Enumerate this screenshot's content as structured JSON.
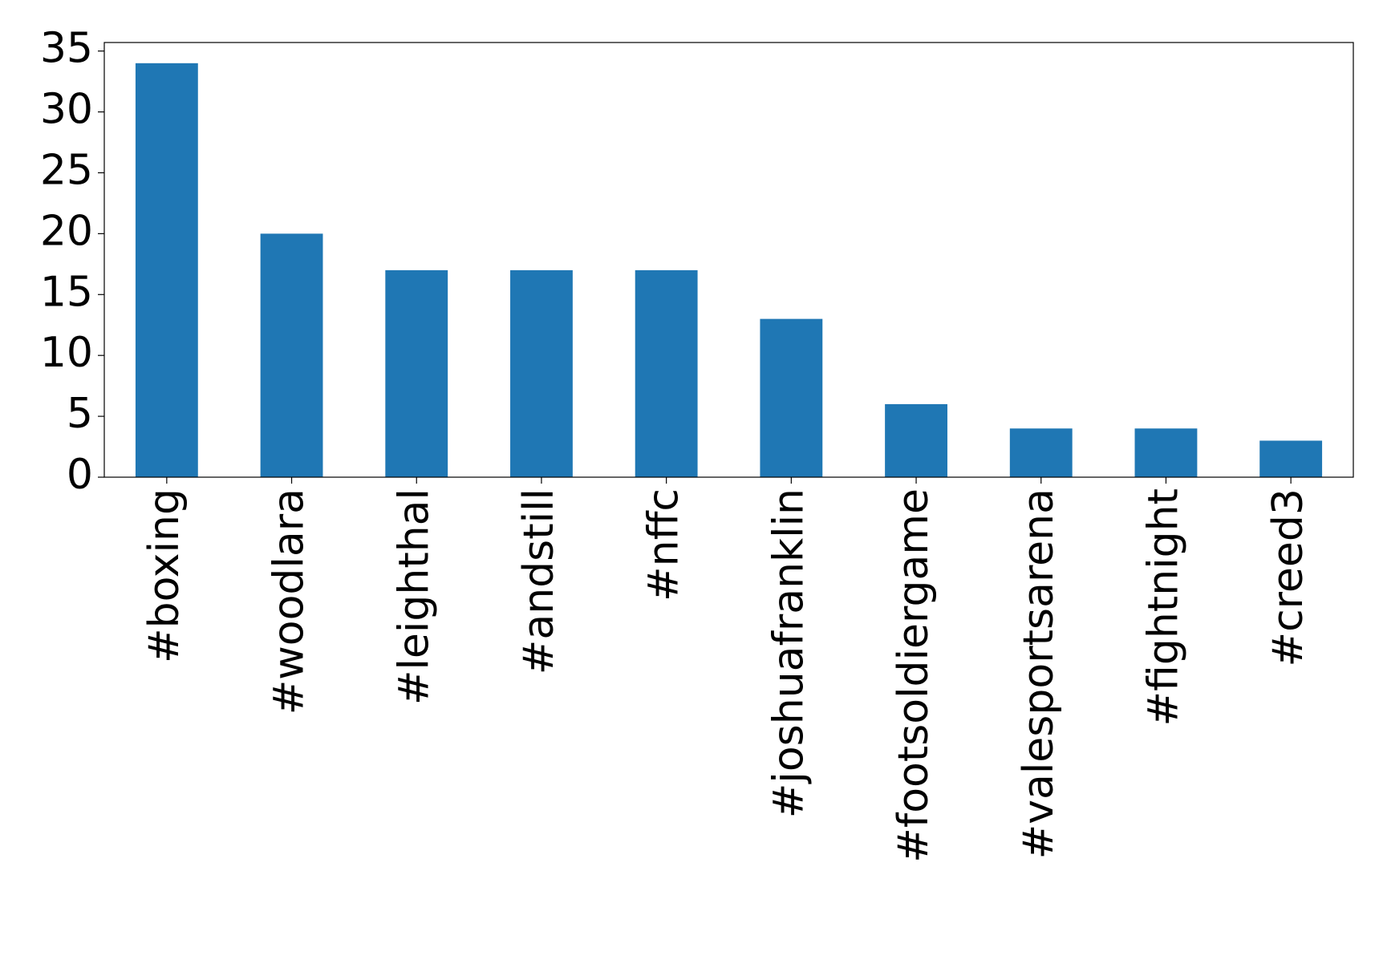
{
  "chart_data": {
    "type": "bar",
    "categories": [
      "#boxing",
      "#woodlara",
      "#leighthal",
      "#andstill",
      "#nffc",
      "#joshuafranklin",
      "#footsoldiergame",
      "#valesportsarena",
      "#fightnight",
      "#creed3"
    ],
    "values": [
      34,
      20,
      17,
      17,
      17,
      13,
      6,
      4,
      4,
      3
    ],
    "color": "#1f77b4",
    "ylim": [
      0,
      35.7
    ],
    "yticks": [
      0,
      5,
      10,
      15,
      20,
      25,
      30,
      35
    ],
    "grid": false
  }
}
